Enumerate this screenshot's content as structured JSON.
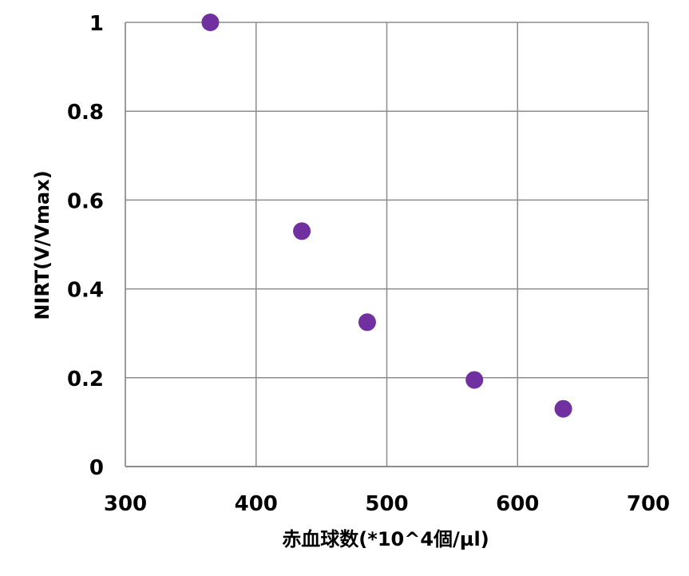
{
  "chart_data": {
    "type": "scatter",
    "xlabel": "赤血球数(*10^4個/µl)",
    "ylabel": "NIRT(V/Vmax)",
    "xlim": [
      300,
      700
    ],
    "ylim": [
      0,
      1
    ],
    "x_ticks": [
      "300",
      "400",
      "500",
      "600",
      "700"
    ],
    "y_ticks": [
      "0",
      "0.2",
      "0.4",
      "0.6",
      "0.8",
      "1"
    ],
    "grid": true,
    "legend": "none",
    "marker_color": "#7030a0",
    "series": [
      {
        "points": [
          {
            "x": 365,
            "y": 1.0
          },
          {
            "x": 435,
            "y": 0.53
          },
          {
            "x": 485,
            "y": 0.325
          },
          {
            "x": 567,
            "y": 0.195
          },
          {
            "x": 635,
            "y": 0.13
          }
        ]
      }
    ]
  }
}
